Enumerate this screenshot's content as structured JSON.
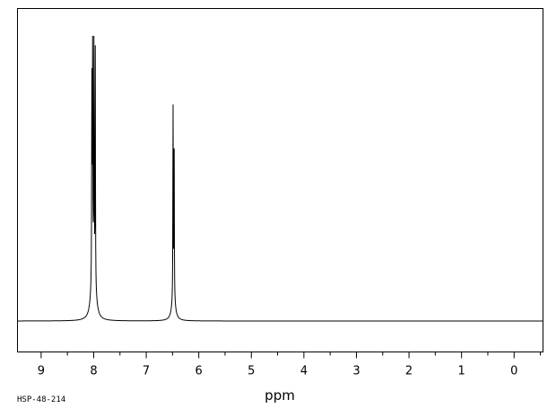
{
  "chart_data": {
    "type": "line",
    "xlabel": "ppm",
    "xlim": [
      9.45,
      -0.55
    ],
    "x_direction": "reversed",
    "x_ticks": [
      9,
      8,
      7,
      6,
      5,
      4,
      3,
      2,
      1,
      0
    ],
    "x_tick_labels": [
      "9",
      "8",
      "7",
      "6",
      "5",
      "4",
      "3",
      "2",
      "1",
      "0"
    ],
    "ylim": [
      -0.08,
      1.0
    ],
    "baseline": 0,
    "grid": false,
    "legend": "none",
    "peaks": [
      {
        "ppm": 8.035,
        "intensity": 0.755
      },
      {
        "ppm": 8.02,
        "intensity": 1.0
      },
      {
        "ppm": 7.995,
        "intensity": 0.965
      },
      {
        "ppm": 7.97,
        "intensity": 0.836
      },
      {
        "ppm": 6.49,
        "intensity": 0.694
      },
      {
        "ppm": 6.47,
        "intensity": 0.662
      }
    ],
    "code_label": "HSP-48-214"
  }
}
